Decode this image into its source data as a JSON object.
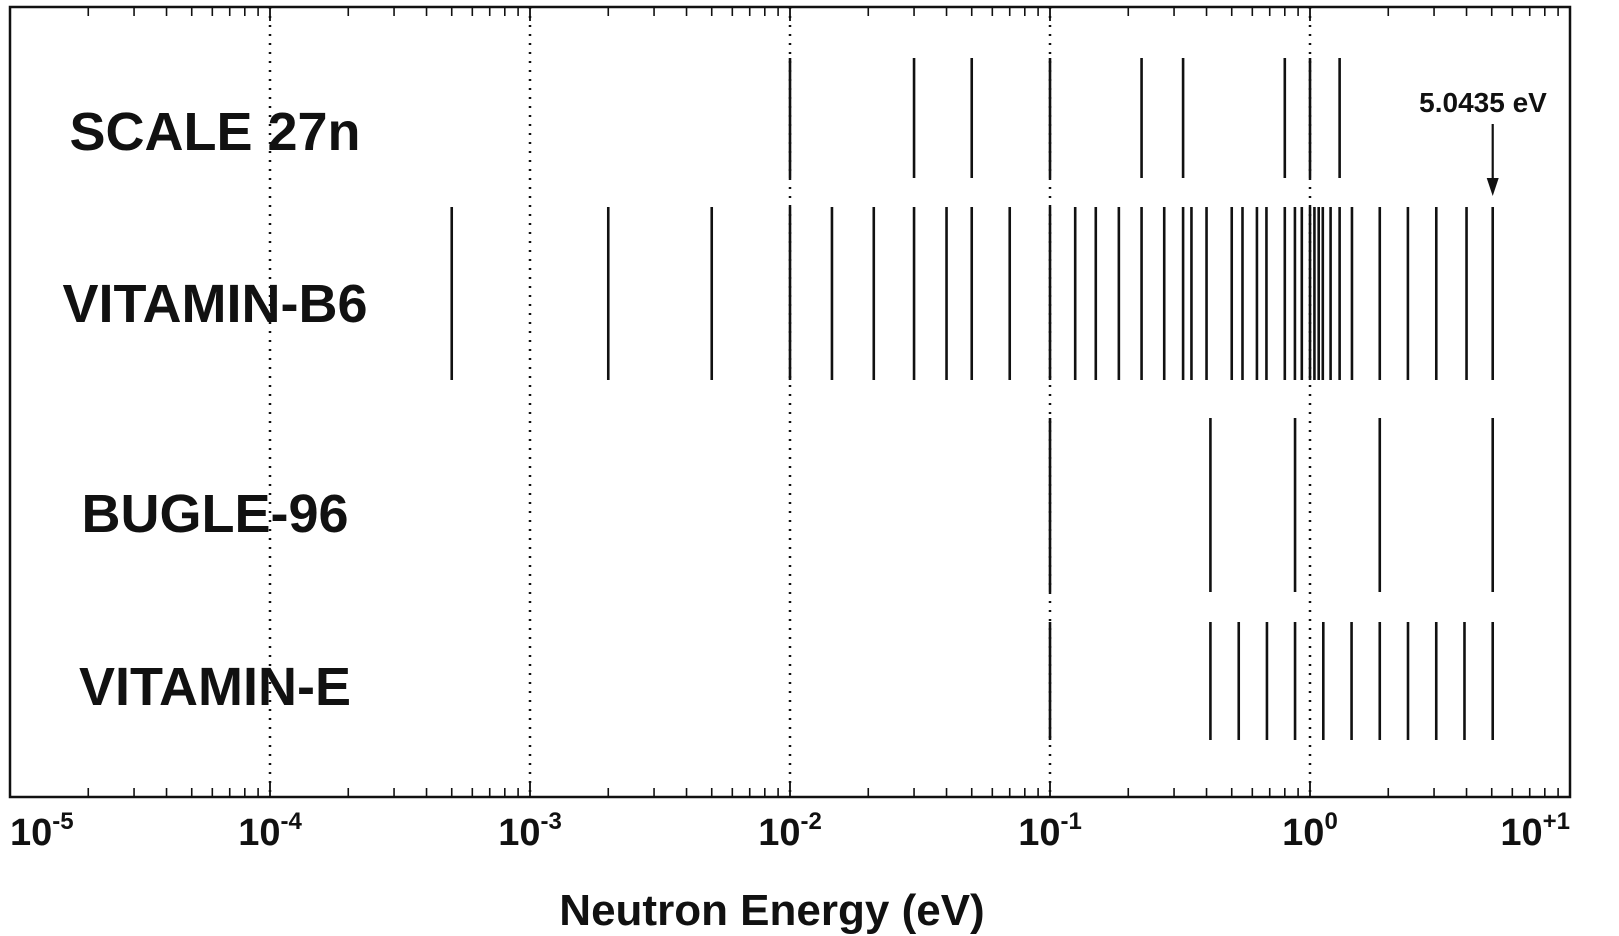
{
  "chart_data": {
    "type": "scatter",
    "xlabel": "Neutron Energy (eV)",
    "xscale": "log",
    "xlim": [
      1e-05,
      10
    ],
    "grid": "vertical dotted at each decade",
    "x_ticks": [
      {
        "base": "10",
        "exp": "-5"
      },
      {
        "base": "10",
        "exp": "-4"
      },
      {
        "base": "10",
        "exp": "-3"
      },
      {
        "base": "10",
        "exp": "-2"
      },
      {
        "base": "10",
        "exp": "-1"
      },
      {
        "base": "10",
        "exp": "0"
      },
      {
        "base": "10",
        "exp": "+1"
      }
    ],
    "series": [
      {
        "name": "SCALE 27n",
        "boundaries_eV": [
          0.01,
          0.03,
          0.05,
          0.1,
          0.225,
          0.325,
          0.8,
          1.0,
          1.3
        ]
      },
      {
        "name": "VITAMIN-B6",
        "boundaries_eV": [
          0.0005,
          0.002,
          0.005,
          0.01,
          0.0145,
          0.021,
          0.03,
          0.04,
          0.05,
          0.07,
          0.1,
          0.125,
          0.15,
          0.184,
          0.225,
          0.275,
          0.325,
          0.35,
          0.4,
          0.5,
          0.55,
          0.625,
          0.68,
          0.8,
          0.875,
          0.93,
          1.0,
          1.04,
          1.08,
          1.12,
          1.2,
          1.3,
          1.45,
          1.855,
          2.38,
          3.06,
          4.0,
          5.0435
        ]
      },
      {
        "name": "BUGLE-96",
        "boundaries_eV": [
          0.1,
          0.414,
          0.876,
          1.855,
          5.0435
        ]
      },
      {
        "name": "VITAMIN-E",
        "boundaries_eV": [
          0.1,
          0.414,
          0.532,
          0.683,
          0.876,
          1.125,
          1.445,
          1.855,
          2.382,
          3.059,
          3.928,
          5.0435
        ]
      }
    ],
    "annotation": {
      "text": "5.0435 eV",
      "x": 5.0435
    }
  }
}
